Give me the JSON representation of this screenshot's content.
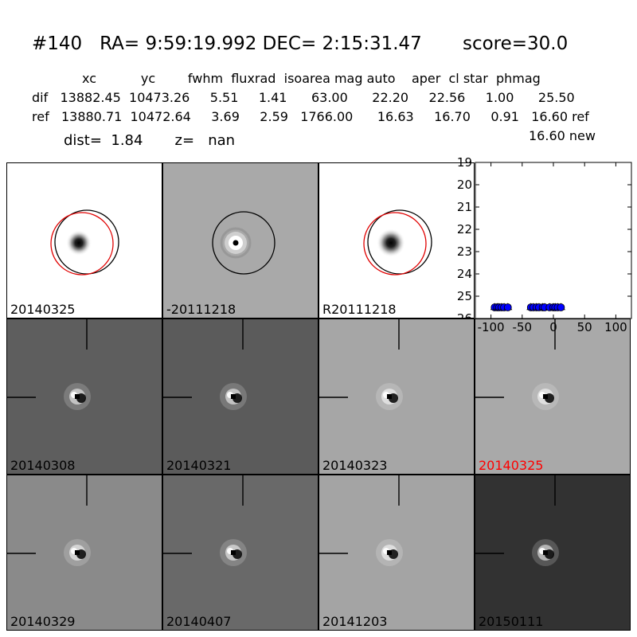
{
  "header": {
    "title": "#140   RA= 9:59:19.992 DEC= 2:15:31.47       score=30.0",
    "col_line": "xc           yc        fwhm  fluxrad  isoarea mag auto    aper  cl star  phmag",
    "dif_line": "dif   13882.45  10473.26     5.51     1.41      63.00      22.20     22.56     1.00      25.50",
    "ref_line": "ref   13880.71  10472.64     3.69     2.59   1766.00      16.63     16.70     0.91   16.60 ref",
    "new_line": "16.60 new",
    "dist_line": "dist=  1.84       z=   nan"
  },
  "top_panels": [
    {
      "label": "20140325",
      "bg": "#ffffff",
      "type": "new"
    },
    {
      "label": "-20111218",
      "bg": "#a9a9a9",
      "type": "diff"
    },
    {
      "label": "R20111218",
      "bg": "#ffffff",
      "type": "ref"
    }
  ],
  "stamps": [
    {
      "label": "20140308",
      "bg": "#5e5e5e",
      "label_color": "#000000"
    },
    {
      "label": "20140321",
      "bg": "#5b5b5b",
      "label_color": "#000000"
    },
    {
      "label": "20140323",
      "bg": "#a6a6a6",
      "label_color": "#000000"
    },
    {
      "label": "20140325",
      "bg": "#a9a9a9",
      "label_color": "#ff0000"
    },
    {
      "label": "20140329",
      "bg": "#8a8a8a",
      "label_color": "#000000"
    },
    {
      "label": "20140407",
      "bg": "#696969",
      "label_color": "#000000"
    },
    {
      "label": "20141203",
      "bg": "#a4a4a4",
      "label_color": "#000000"
    },
    {
      "label": "20150111",
      "bg": "#323232",
      "label_color": "#000000"
    }
  ],
  "chart_data": {
    "type": "scatter",
    "title": "",
    "xlabel": "",
    "ylabel": "",
    "xlim": [
      -125,
      125
    ],
    "ylim": [
      26,
      19
    ],
    "y_inverted": true,
    "x_ticks": [
      "-100",
      "-50",
      "0",
      "50",
      "100"
    ],
    "x_tick_values": [
      -100,
      -50,
      0,
      50,
      100
    ],
    "y_ticks": [
      "19",
      "20",
      "21",
      "22",
      "23",
      "24",
      "25",
      "26"
    ],
    "y_tick_values": [
      19,
      20,
      21,
      22,
      23,
      24,
      25,
      26
    ],
    "marker_color": "#0000ff",
    "series": [
      {
        "x": [
          -94,
          -90,
          -87,
          -83,
          -79,
          -73,
          -36,
          -32,
          -27,
          -23,
          -17,
          -14,
          -6,
          0,
          3,
          7,
          12
        ],
        "y": [
          25.5,
          25.5,
          25.5,
          25.5,
          25.5,
          25.5,
          25.5,
          25.5,
          25.5,
          25.5,
          25.5,
          25.5,
          25.5,
          25.5,
          25.5,
          25.5,
          25.5
        ]
      }
    ]
  }
}
